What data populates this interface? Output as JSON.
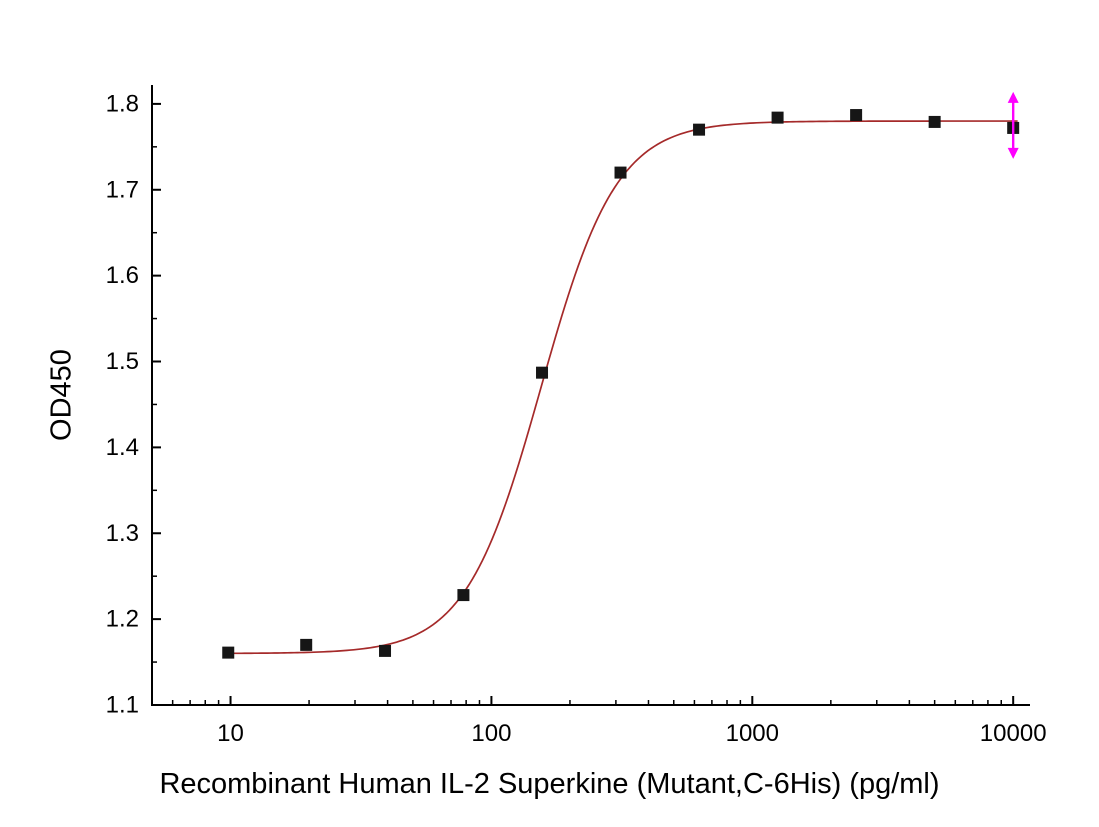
{
  "chart_data": {
    "type": "scatter",
    "x_scale": "log10",
    "title": "",
    "xlabel": "Recombinant Human IL-2 Superkine (Mutant,C-6His) (pg/ml)",
    "ylabel": "OD450",
    "xlim": [
      5,
      11600
    ],
    "ylim": [
      1.1,
      1.822
    ],
    "x_ticks": [
      10,
      100,
      1000,
      10000
    ],
    "x_tick_labels": [
      "10",
      "100",
      "1000",
      "10000"
    ],
    "y_ticks": [
      1.1,
      1.2,
      1.3,
      1.4,
      1.5,
      1.6,
      1.7,
      1.8
    ],
    "y_tick_labels": [
      "1.1",
      "1.2",
      "1.3",
      "1.4",
      "1.5",
      "1.6",
      "1.7",
      "1.8"
    ],
    "grid": "off",
    "legend": "none",
    "points": [
      [
        9.8,
        1.161
      ],
      [
        19.5,
        1.17
      ],
      [
        39.1,
        1.163
      ],
      [
        78.1,
        1.228
      ],
      [
        156.3,
        1.487
      ],
      [
        312.5,
        1.72
      ],
      [
        625,
        1.77
      ],
      [
        1250,
        1.784
      ],
      [
        2500,
        1.787
      ],
      [
        5000,
        1.779
      ],
      [
        10000,
        1.772
      ]
    ],
    "fit_curve": {
      "model": "4PL-logistic",
      "bottom": 1.16,
      "top": 1.78,
      "ec50": 155,
      "hill": 3.0,
      "x_start": 9.5,
      "x_end": 10400
    },
    "error_arrow": {
      "x": 10000,
      "y_low": 1.736,
      "y_high": 1.814,
      "color": "#ff00ff"
    },
    "marker": {
      "shape": "square",
      "size": 12,
      "color": "#161616"
    },
    "colors": {
      "curve": "#a52a2a",
      "axis": "#000000",
      "text": "#000000",
      "background": "#ffffff"
    }
  }
}
